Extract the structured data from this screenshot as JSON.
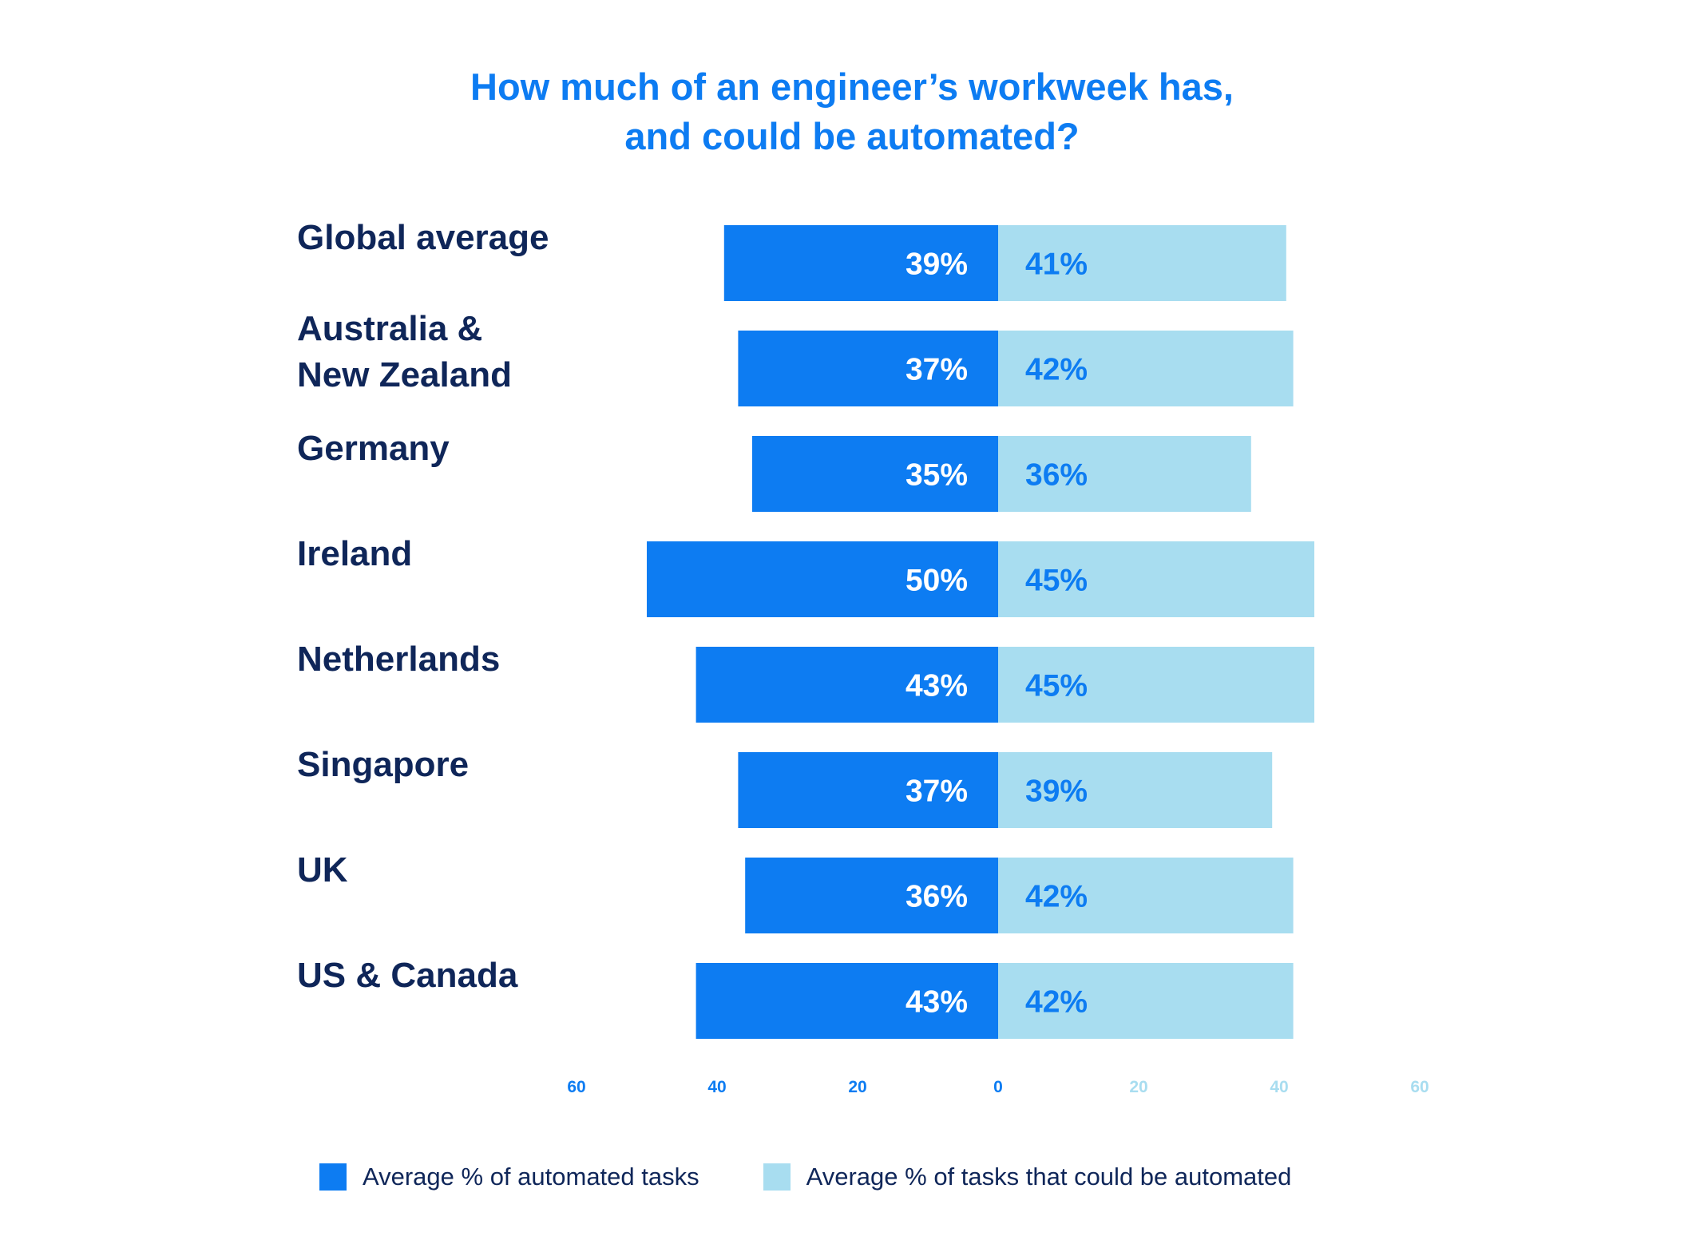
{
  "title": {
    "line1": "How much of an engineer’s workweek has,",
    "line2": "and could be automated?"
  },
  "colors": {
    "automated": "#0d7cf2",
    "could_be_automated": "#a8ddf0",
    "title": "#0d7cf2",
    "category_label": "#0f2659"
  },
  "chart_data": {
    "type": "bar",
    "orientation": "horizontal-diverging",
    "categories": [
      "Global average",
      "Australia & New Zealand",
      "Germany",
      "Ireland",
      "Netherlands",
      "Singapore",
      "UK",
      "US & Canada"
    ],
    "category_lines": [
      [
        "Global average"
      ],
      [
        "Australia &",
        "New Zealand"
      ],
      [
        "Germany"
      ],
      [
        "Ireland"
      ],
      [
        "Netherlands"
      ],
      [
        "Singapore"
      ],
      [
        "UK"
      ],
      [
        "US & Canada"
      ]
    ],
    "series": [
      {
        "name": "Average % of automated tasks",
        "side": "left",
        "values": [
          39,
          37,
          35,
          50,
          43,
          37,
          36,
          43
        ],
        "labels": [
          "39%",
          "37%",
          "35%",
          "50%",
          "43%",
          "37%",
          "36%",
          "43%"
        ]
      },
      {
        "name": "Average % of tasks that could be automated",
        "side": "right",
        "values": [
          41,
          42,
          36,
          45,
          45,
          39,
          42,
          42
        ],
        "labels": [
          "41%",
          "42%",
          "36%",
          "45%",
          "45%",
          "39%",
          "42%",
          "42%"
        ]
      }
    ],
    "xlim": [
      -60,
      60
    ],
    "x_ticks_left": [
      "60",
      "40",
      "20",
      "0"
    ],
    "x_ticks_right": [
      "20",
      "40",
      "60"
    ],
    "grid": false,
    "legend_position": "bottom"
  }
}
